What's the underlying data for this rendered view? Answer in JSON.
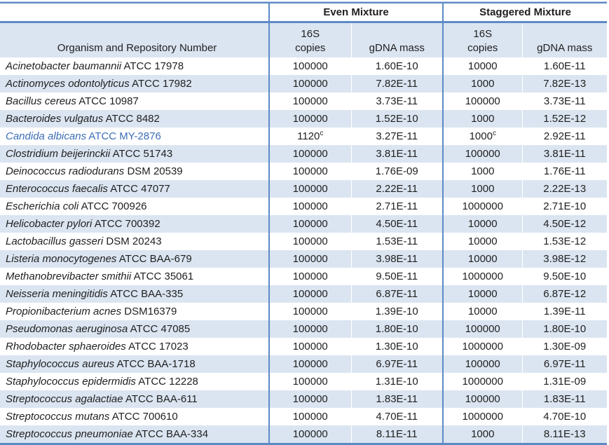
{
  "table": {
    "organism_header": "Organism and Repository Number",
    "group_headers": {
      "even": "Even Mixture",
      "staggered": "Staggered Mixture"
    },
    "subheaders": {
      "copies_line1": "16S",
      "copies_line2": "copies",
      "gdna_mass": "gDNA mass"
    },
    "rows": [
      {
        "organism": "Acinetobacter baumannii",
        "strain": "ATCC 17978",
        "even_copies": "100000",
        "even_copies_sup": "",
        "even_gdna": "1.60E-10",
        "stag_copies": "10000",
        "stag_copies_sup": "",
        "stag_gdna": "1.60E-11",
        "highlight": false
      },
      {
        "organism": "Actinomyces odontolyticus",
        "strain": "ATCC 17982",
        "even_copies": "100000",
        "even_copies_sup": "",
        "even_gdna": "7.82E-11",
        "stag_copies": "1000",
        "stag_copies_sup": "",
        "stag_gdna": "7.82E-13",
        "highlight": false
      },
      {
        "organism": "Bacillus cereus",
        "strain": "ATCC 10987",
        "even_copies": "100000",
        "even_copies_sup": "",
        "even_gdna": "3.73E-11",
        "stag_copies": "100000",
        "stag_copies_sup": "",
        "stag_gdna": "3.73E-11",
        "highlight": false
      },
      {
        "organism": "Bacteroides vulgatus",
        "strain": "ATCC 8482",
        "even_copies": "100000",
        "even_copies_sup": "",
        "even_gdna": "1.52E-10",
        "stag_copies": "1000",
        "stag_copies_sup": "",
        "stag_gdna": "1.52E-12",
        "highlight": false
      },
      {
        "organism": "Candida albicans",
        "strain": "ATCC MY-2876",
        "even_copies": "1120",
        "even_copies_sup": "c",
        "even_gdna": "3.27E-11",
        "stag_copies": "1000",
        "stag_copies_sup": "c",
        "stag_gdna": "2.92E-11",
        "highlight": true
      },
      {
        "organism": "Clostridium beijerinckii",
        "strain": "ATCC 51743",
        "even_copies": "100000",
        "even_copies_sup": "",
        "even_gdna": "3.81E-11",
        "stag_copies": "100000",
        "stag_copies_sup": "",
        "stag_gdna": "3.81E-11",
        "highlight": false
      },
      {
        "organism": "Deinococcus radiodurans",
        "strain": "DSM 20539",
        "even_copies": "100000",
        "even_copies_sup": "",
        "even_gdna": "1.76E-09",
        "stag_copies": "1000",
        "stag_copies_sup": "",
        "stag_gdna": "1.76E-11",
        "highlight": false
      },
      {
        "organism": "Enterococcus faecalis",
        "strain": "ATCC 47077",
        "even_copies": "100000",
        "even_copies_sup": "",
        "even_gdna": "2.22E-11",
        "stag_copies": "1000",
        "stag_copies_sup": "",
        "stag_gdna": "2.22E-13",
        "highlight": false
      },
      {
        "organism": "Escherichia coli",
        "strain": "ATCC 700926",
        "even_copies": "100000",
        "even_copies_sup": "",
        "even_gdna": "2.71E-11",
        "stag_copies": "1000000",
        "stag_copies_sup": "",
        "stag_gdna": "2.71E-10",
        "highlight": false
      },
      {
        "organism": "Helicobacter pylori",
        "strain": "ATCC 700392",
        "even_copies": "100000",
        "even_copies_sup": "",
        "even_gdna": "4.50E-11",
        "stag_copies": "10000",
        "stag_copies_sup": "",
        "stag_gdna": "4.50E-12",
        "highlight": false
      },
      {
        "organism": "Lactobacillus gasseri",
        "strain": "DSM 20243",
        "even_copies": "100000",
        "even_copies_sup": "",
        "even_gdna": "1.53E-11",
        "stag_copies": "10000",
        "stag_copies_sup": "",
        "stag_gdna": "1.53E-12",
        "highlight": false
      },
      {
        "organism": "Listeria monocytogenes",
        "strain": "ATCC BAA-679",
        "even_copies": "100000",
        "even_copies_sup": "",
        "even_gdna": "3.98E-11",
        "stag_copies": "10000",
        "stag_copies_sup": "",
        "stag_gdna": "3.98E-12",
        "highlight": false
      },
      {
        "organism": "Methanobrevibacter smithii",
        "strain": "ATCC 35061",
        "even_copies": "100000",
        "even_copies_sup": "",
        "even_gdna": "9.50E-11",
        "stag_copies": "1000000",
        "stag_copies_sup": "",
        "stag_gdna": "9.50E-10",
        "highlight": false
      },
      {
        "organism": "Neisseria meningitidis",
        "strain": "ATCC BAA-335",
        "even_copies": "100000",
        "even_copies_sup": "",
        "even_gdna": "6.87E-11",
        "stag_copies": "10000",
        "stag_copies_sup": "",
        "stag_gdna": "6.87E-12",
        "highlight": false
      },
      {
        "organism": "Propionibacterium acnes",
        "strain": "DSM16379",
        "even_copies": "100000",
        "even_copies_sup": "",
        "even_gdna": "1.39E-10",
        "stag_copies": "10000",
        "stag_copies_sup": "",
        "stag_gdna": "1.39E-11",
        "highlight": false
      },
      {
        "organism": "Pseudomonas aeruginosa",
        "strain": "ATCC 47085",
        "even_copies": "100000",
        "even_copies_sup": "",
        "even_gdna": "1.80E-10",
        "stag_copies": "100000",
        "stag_copies_sup": "",
        "stag_gdna": "1.80E-10",
        "highlight": false
      },
      {
        "organism": "Rhodobacter sphaeroides",
        "strain": "ATCC 17023",
        "even_copies": "100000",
        "even_copies_sup": "",
        "even_gdna": "1.30E-10",
        "stag_copies": "1000000",
        "stag_copies_sup": "",
        "stag_gdna": "1.30E-09",
        "highlight": false
      },
      {
        "organism": "Staphylococcus aureus",
        "strain": "ATCC BAA-1718",
        "even_copies": "100000",
        "even_copies_sup": "",
        "even_gdna": "6.97E-11",
        "stag_copies": "100000",
        "stag_copies_sup": "",
        "stag_gdna": "6.97E-11",
        "highlight": false
      },
      {
        "organism": "Staphylococcus epidermidis",
        "strain": "ATCC 12228",
        "even_copies": "100000",
        "even_copies_sup": "",
        "even_gdna": "1.31E-10",
        "stag_copies": "1000000",
        "stag_copies_sup": "",
        "stag_gdna": "1.31E-09",
        "highlight": false
      },
      {
        "organism": "Streptococcus agalactiae",
        "strain": "ATCC BAA-611",
        "even_copies": "100000",
        "even_copies_sup": "",
        "even_gdna": "1.83E-11",
        "stag_copies": "100000",
        "stag_copies_sup": "",
        "stag_gdna": "1.83E-11",
        "highlight": false
      },
      {
        "organism": "Streptococcus mutans",
        "strain": "ATCC 700610",
        "even_copies": "100000",
        "even_copies_sup": "",
        "even_gdna": "4.70E-11",
        "stag_copies": "1000000",
        "stag_copies_sup": "",
        "stag_gdna": "4.70E-10",
        "highlight": false
      },
      {
        "organism": "Streptococcus pneumoniae",
        "strain": "ATCC BAA-334",
        "even_copies": "100000",
        "even_copies_sup": "",
        "even_gdna": "8.11E-11",
        "stag_copies": "1000",
        "stag_copies_sup": "",
        "stag_gdna": "8.11E-13",
        "highlight": false
      }
    ]
  },
  "colors": {
    "accent_line": "#5d8ac5",
    "row_shading": "#dbe5f1",
    "highlight_text": "#3a6db6"
  }
}
